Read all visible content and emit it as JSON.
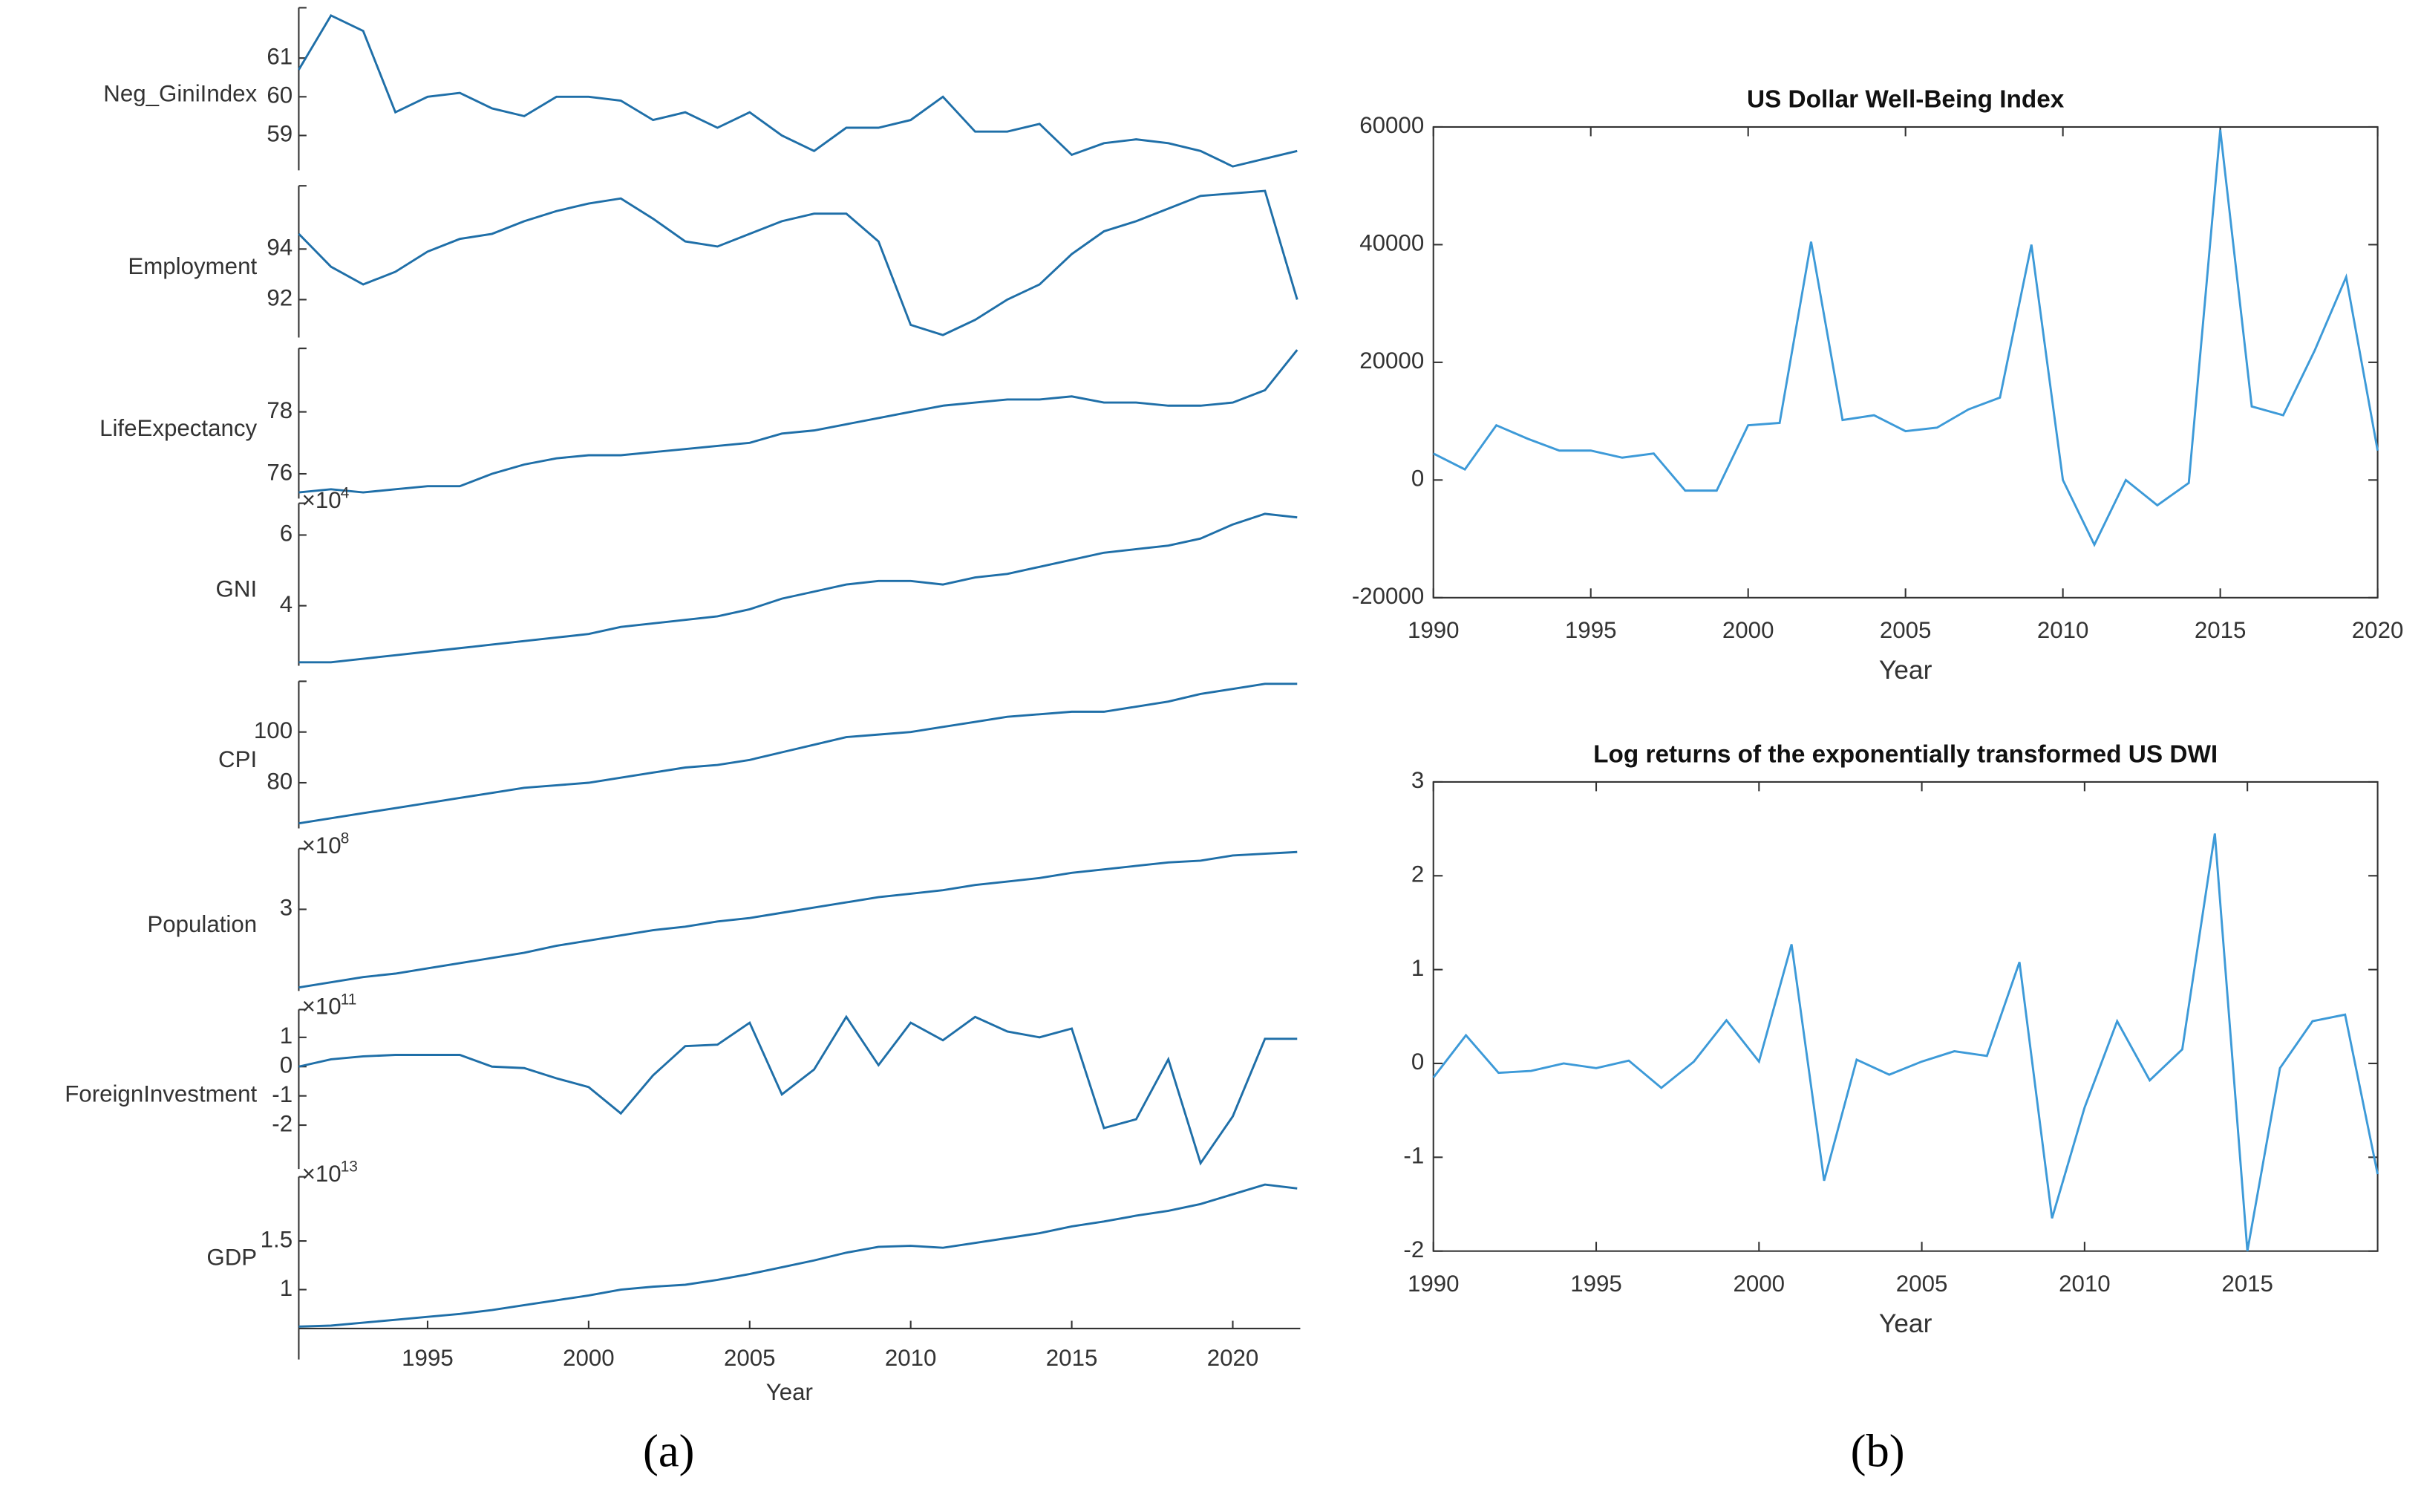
{
  "chart_data": [
    {
      "type": "stackplot",
      "panel_label": "(a)",
      "xlabel": "Year",
      "x": [
        1991,
        1992,
        1993,
        1994,
        1995,
        1996,
        1997,
        1998,
        1999,
        2000,
        2001,
        2002,
        2003,
        2004,
        2005,
        2006,
        2007,
        2008,
        2009,
        2010,
        2011,
        2012,
        2013,
        2014,
        2015,
        2016,
        2017,
        2018,
        2019,
        2020,
        2021,
        2022
      ],
      "xlim": [
        1991,
        2022
      ],
      "xticks": [
        1995,
        2000,
        2005,
        2010,
        2015,
        2020
      ],
      "color": "#1f6fa8",
      "series": [
        {
          "name": "Neg_GiniIndex",
          "ylim": [
            58.1,
            62.3
          ],
          "yticks": [
            59,
            60,
            61
          ],
          "values": [
            60.7,
            62.1,
            61.7,
            59.6,
            60.0,
            60.1,
            59.7,
            59.5,
            60.0,
            60.0,
            59.9,
            59.4,
            59.6,
            59.2,
            59.6,
            59.0,
            58.6,
            59.2,
            59.2,
            59.4,
            60.0,
            59.1,
            59.1,
            59.3,
            58.5,
            58.8,
            58.9,
            58.8,
            58.6,
            58.2,
            58.4,
            58.6
          ]
        },
        {
          "name": "Employment",
          "ylim": [
            90.5,
            96.5
          ],
          "yticks": [
            92,
            94
          ],
          "values": [
            94.6,
            93.3,
            92.6,
            93.1,
            93.9,
            94.4,
            94.6,
            95.1,
            95.5,
            95.8,
            96.0,
            95.2,
            94.3,
            94.1,
            94.6,
            95.1,
            95.4,
            95.4,
            94.3,
            91.0,
            90.6,
            91.2,
            92.0,
            92.6,
            93.8,
            94.7,
            95.1,
            95.6,
            96.1,
            96.2,
            96.3,
            92.0
          ]
        },
        {
          "name": "LifeExpectancy",
          "ylim": [
            75.2,
            80.05
          ],
          "yticks": [
            76,
            78
          ],
          "values": [
            75.4,
            75.5,
            75.4,
            75.5,
            75.6,
            75.6,
            76.0,
            76.3,
            76.5,
            76.6,
            76.6,
            76.7,
            76.8,
            76.9,
            77.0,
            77.3,
            77.4,
            77.6,
            77.8,
            78.0,
            78.2,
            78.3,
            78.4,
            78.4,
            78.5,
            78.3,
            78.3,
            78.2,
            78.2,
            78.3,
            78.7,
            80.0
          ]
        },
        {
          "name": "GNI",
          "ylim": [
            2.3,
            6.9
          ],
          "yticks": [
            4,
            6
          ],
          "multiplier": "×10",
          "exponent": "4",
          "values": [
            2.4,
            2.4,
            2.5,
            2.6,
            2.7,
            2.8,
            2.9,
            3.0,
            3.1,
            3.2,
            3.4,
            3.5,
            3.6,
            3.7,
            3.9,
            4.2,
            4.4,
            4.6,
            4.7,
            4.7,
            4.6,
            4.8,
            4.9,
            5.1,
            5.3,
            5.5,
            5.6,
            5.7,
            5.9,
            6.3,
            6.6,
            6.5
          ]
        },
        {
          "name": "CPI",
          "ylim": [
            62,
            120
          ],
          "yticks": [
            80,
            100
          ],
          "values": [
            64,
            66,
            68,
            70,
            72,
            74,
            76,
            78,
            79,
            80,
            82,
            84,
            86,
            87,
            89,
            92,
            95,
            98,
            99,
            100,
            102,
            104,
            106,
            107,
            108,
            108,
            110,
            112,
            115,
            117,
            119,
            119
          ]
        },
        {
          "name": "Population",
          "ylim": [
            2.53,
            3.35
          ],
          "yticks": [
            3
          ],
          "multiplier": "×10",
          "exponent": "8",
          "values": [
            2.55,
            2.58,
            2.61,
            2.63,
            2.66,
            2.69,
            2.72,
            2.75,
            2.79,
            2.82,
            2.85,
            2.88,
            2.9,
            2.93,
            2.95,
            2.98,
            3.01,
            3.04,
            3.07,
            3.09,
            3.11,
            3.14,
            3.16,
            3.18,
            3.21,
            3.23,
            3.25,
            3.27,
            3.28,
            3.31,
            3.32,
            3.33
          ]
        },
        {
          "name": "ForeignInvestment",
          "ylim": [
            -3.5,
            1.95
          ],
          "yticks": [
            -2,
            -1,
            0,
            1
          ],
          "multiplier": "×10",
          "exponent": "11",
          "values": [
            0.0,
            0.25,
            0.35,
            0.4,
            0.4,
            0.4,
            0.0,
            -0.05,
            -0.4,
            -0.7,
            -1.6,
            -0.3,
            0.7,
            0.75,
            1.5,
            -0.95,
            -0.1,
            1.7,
            0.05,
            1.5,
            0.9,
            1.7,
            1.2,
            1.0,
            1.3,
            -2.1,
            -1.8,
            0.25,
            -3.3,
            -1.7,
            0.95,
            0.95
          ]
        },
        {
          "name": "GDP",
          "ylim": [
            0.6,
            2.16
          ],
          "yticks": [
            1,
            1.5
          ],
          "multiplier": "×10",
          "exponent": "13",
          "values": [
            0.62,
            0.63,
            0.66,
            0.69,
            0.72,
            0.75,
            0.79,
            0.84,
            0.89,
            0.94,
            1.0,
            1.03,
            1.05,
            1.1,
            1.16,
            1.23,
            1.3,
            1.38,
            1.44,
            1.45,
            1.43,
            1.48,
            1.53,
            1.58,
            1.65,
            1.7,
            1.76,
            1.81,
            1.88,
            1.98,
            2.08,
            2.04
          ]
        }
      ]
    },
    {
      "type": "line",
      "panel_label": "(b)",
      "title": "US Dollar Well-Being Index",
      "xlabel": "Year",
      "color": "#3d9ad8",
      "x": [
        1990,
        1991,
        1992,
        1993,
        1994,
        1995,
        1996,
        1997,
        1998,
        1999,
        2000,
        2001,
        2002,
        2003,
        2004,
        2005,
        2006,
        2007,
        2008,
        2009,
        2010,
        2011,
        2012,
        2013,
        2014,
        2015,
        2016,
        2017,
        2018,
        2019,
        2020
      ],
      "values": [
        4500,
        1800,
        9300,
        7000,
        5000,
        5000,
        3800,
        4500,
        -1800,
        -1800,
        9300,
        9700,
        40500,
        10200,
        11000,
        8300,
        8900,
        12000,
        14000,
        40000,
        0,
        -11000,
        0,
        -4300,
        -500,
        59500,
        12500,
        11000,
        22000,
        34500,
        5000
      ],
      "xlim": [
        1990,
        2020
      ],
      "xticks": [
        1990,
        1995,
        2000,
        2005,
        2010,
        2015,
        2020
      ],
      "ylim": [
        -20000,
        60000
      ],
      "yticks": [
        -20000,
        0,
        20000,
        40000,
        60000
      ]
    },
    {
      "type": "line",
      "title": "Log returns of the exponentially transformed US DWI",
      "xlabel": "Year",
      "color": "#3d9ad8",
      "x": [
        1990,
        1991,
        1992,
        1993,
        1994,
        1995,
        1996,
        1997,
        1998,
        1999,
        2000,
        2001,
        2002,
        2003,
        2004,
        2005,
        2006,
        2007,
        2008,
        2009,
        2010,
        2011,
        2012,
        2013,
        2014,
        2015,
        2016,
        2017,
        2018,
        2019
      ],
      "values": [
        -0.15,
        0.3,
        -0.1,
        -0.08,
        0.0,
        -0.05,
        0.03,
        -0.26,
        0.02,
        0.46,
        0.02,
        1.27,
        -1.25,
        0.04,
        -0.12,
        0.02,
        0.13,
        0.08,
        1.08,
        -1.65,
        -0.47,
        0.45,
        -0.18,
        0.15,
        2.45,
        -2.0,
        -0.05,
        0.45,
        0.52,
        -1.18
      ],
      "xlim": [
        1990,
        2019
      ],
      "xticks": [
        1990,
        1995,
        2000,
        2005,
        2010,
        2015
      ],
      "ylim": [
        -2,
        3
      ],
      "yticks": [
        -2,
        -1,
        0,
        1,
        2,
        3
      ]
    }
  ]
}
